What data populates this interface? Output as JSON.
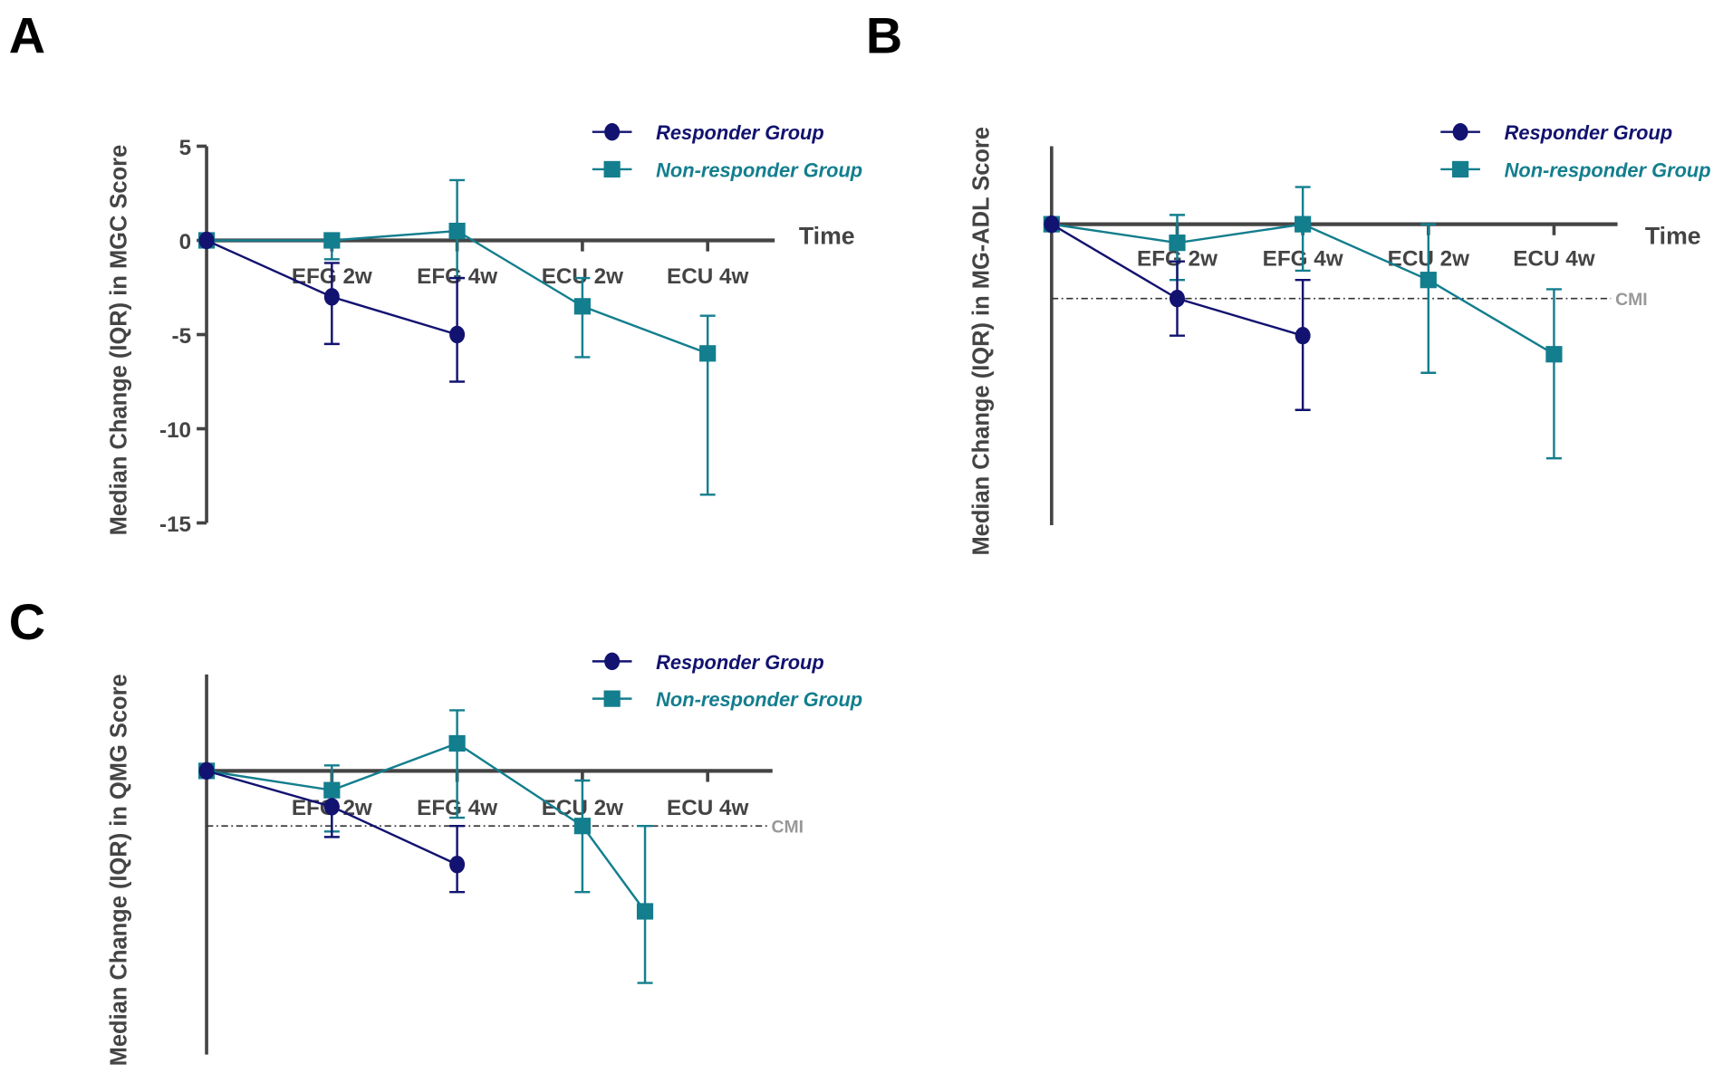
{
  "colors": {
    "responder": "#121270",
    "nonresponder": "#137e8e",
    "axis": "#444444",
    "cmi": "#999999"
  },
  "chart_data": [
    {
      "type": "line",
      "panel": "A",
      "ylabel": "Median Change (IQR) in MGC Score",
      "xlabel": "Time",
      "categories": [
        "",
        "EFG 2w",
        "EFG 4w",
        "ECU 2w",
        "ECU 4w"
      ],
      "ylim": [
        -15,
        5
      ],
      "yticks": [
        5,
        0,
        -5,
        -10,
        -15
      ],
      "ytick_labels": [
        "5",
        "0",
        "-5",
        "-10",
        "-15"
      ],
      "legend": [
        "Responder Group",
        "Non-responder Group"
      ],
      "legend_position": "top-right",
      "series": [
        {
          "name": "Responder Group",
          "marker": "circle",
          "points": [
            {
              "x": 0,
              "y": 0,
              "lo": 0,
              "hi": 0
            },
            {
              "x": 1,
              "y": -3,
              "lo": -5.5,
              "hi": -1.2
            },
            {
              "x": 2,
              "y": -5,
              "lo": -7.5,
              "hi": -2
            }
          ]
        },
        {
          "name": "Non-responder Group",
          "marker": "square",
          "points": [
            {
              "x": 0,
              "y": 0,
              "lo": 0,
              "hi": 0
            },
            {
              "x": 1,
              "y": 0,
              "lo": -1,
              "hi": 0
            },
            {
              "x": 2,
              "y": 0.5,
              "lo": -2,
              "hi": 3.2
            },
            {
              "x": 3,
              "y": -3.5,
              "lo": -6.2,
              "hi": -2
            },
            {
              "x": 4,
              "y": -6,
              "lo": -13.5,
              "hi": -4
            }
          ]
        }
      ]
    },
    {
      "type": "line",
      "panel": "B",
      "ylabel": "Median Change (IQR) in MG-ADL Score",
      "xlabel": "Time",
      "categories": [
        "",
        "EFG 2w",
        "EFG 4w",
        "ECU 2w",
        "ECU 4w"
      ],
      "ylim": [
        -8.1,
        2.1
      ],
      "reference_line": {
        "label": "CMI",
        "y": -2
      },
      "legend": [
        "Responder Group",
        "Non-responder Group"
      ],
      "legend_position": "top-right",
      "series": [
        {
          "name": "Responder Group",
          "marker": "circle",
          "points": [
            {
              "x": 0,
              "y": 0,
              "lo": 0,
              "hi": 0
            },
            {
              "x": 1,
              "y": -2,
              "lo": -3,
              "hi": -1
            },
            {
              "x": 2,
              "y": -3,
              "lo": -5,
              "hi": -1.5
            }
          ]
        },
        {
          "name": "Non-responder Group",
          "marker": "square",
          "points": [
            {
              "x": 0,
              "y": 0,
              "lo": 0,
              "hi": 0
            },
            {
              "x": 1,
              "y": -0.5,
              "lo": -1.5,
              "hi": 0.25
            },
            {
              "x": 2,
              "y": 0,
              "lo": -1.25,
              "hi": 1
            },
            {
              "x": 3,
              "y": -1.5,
              "lo": -4,
              "hi": 0
            },
            {
              "x": 4,
              "y": -3.5,
              "lo": -6.3,
              "hi": -1.75
            }
          ]
        }
      ]
    },
    {
      "type": "line",
      "panel": "C",
      "ylabel": "Median Change (IQR) in QMG Score",
      "xlabel": "",
      "categories": [
        "",
        "EFG 2w",
        "EFG 4w",
        "ECU 2w",
        "ECU 4w"
      ],
      "ylim": [
        -10.3,
        3.5
      ],
      "reference_line": {
        "label": "CMI",
        "y": -2
      },
      "legend": [
        "Responder Group",
        "Non-responder Group"
      ],
      "legend_position": "top-right",
      "series": [
        {
          "name": "Responder Group",
          "marker": "circle",
          "points": [
            {
              "x": 0,
              "y": 0,
              "lo": 0,
              "hi": 0
            },
            {
              "x": 1,
              "y": -1.3,
              "lo": -2.4,
              "hi": -1.3
            },
            {
              "x": 2,
              "y": -3.4,
              "lo": -4.4,
              "hi": -2
            }
          ]
        },
        {
          "name": "Non-responder Group",
          "marker": "square",
          "points": [
            {
              "x": 0,
              "y": 0,
              "lo": 0,
              "hi": 0
            },
            {
              "x": 1,
              "y": -0.7,
              "lo": -2.2,
              "hi": 0.2
            },
            {
              "x": 2,
              "y": 1,
              "lo": -1.7,
              "hi": 2.2
            },
            {
              "x": 3,
              "y": -2,
              "lo": -4.4,
              "hi": -0.35
            },
            {
              "x": 3.5,
              "y": -5.1,
              "lo": -7.7,
              "hi": -2
            }
          ]
        }
      ]
    }
  ]
}
